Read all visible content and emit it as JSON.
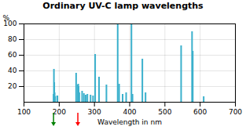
{
  "chart_data": {
    "type": "bar",
    "title": "Ordinary UV-C lamp wavelengths",
    "xlabel": "Wavelength in nm",
    "ylabel": "%",
    "x": [
      184,
      185,
      186,
      187,
      188,
      194,
      195,
      248,
      253,
      254,
      255,
      257,
      265,
      270,
      275,
      280,
      289,
      296,
      302,
      313,
      334,
      366,
      370,
      380,
      390,
      405,
      408,
      436,
      445,
      546,
      577,
      579,
      610
    ],
    "values": [
      10,
      42,
      25,
      12,
      7,
      8,
      8,
      37,
      22,
      23,
      20,
      12,
      14,
      11,
      9,
      10,
      9,
      8,
      61,
      32,
      22,
      100,
      23,
      10,
      12,
      100,
      10,
      55,
      12,
      72,
      90,
      65,
      7
    ],
    "color": "#3ab0cc",
    "xlim": [
      100,
      700
    ],
    "ylim": [
      0,
      100
    ],
    "xticks": [
      100,
      200,
      300,
      400,
      500,
      600,
      700
    ],
    "yticks": [
      20,
      40,
      60,
      80,
      100
    ],
    "grid": true,
    "annotations": [
      {
        "x": 185,
        "color": "green"
      },
      {
        "x": 254,
        "color": "red"
      }
    ]
  }
}
